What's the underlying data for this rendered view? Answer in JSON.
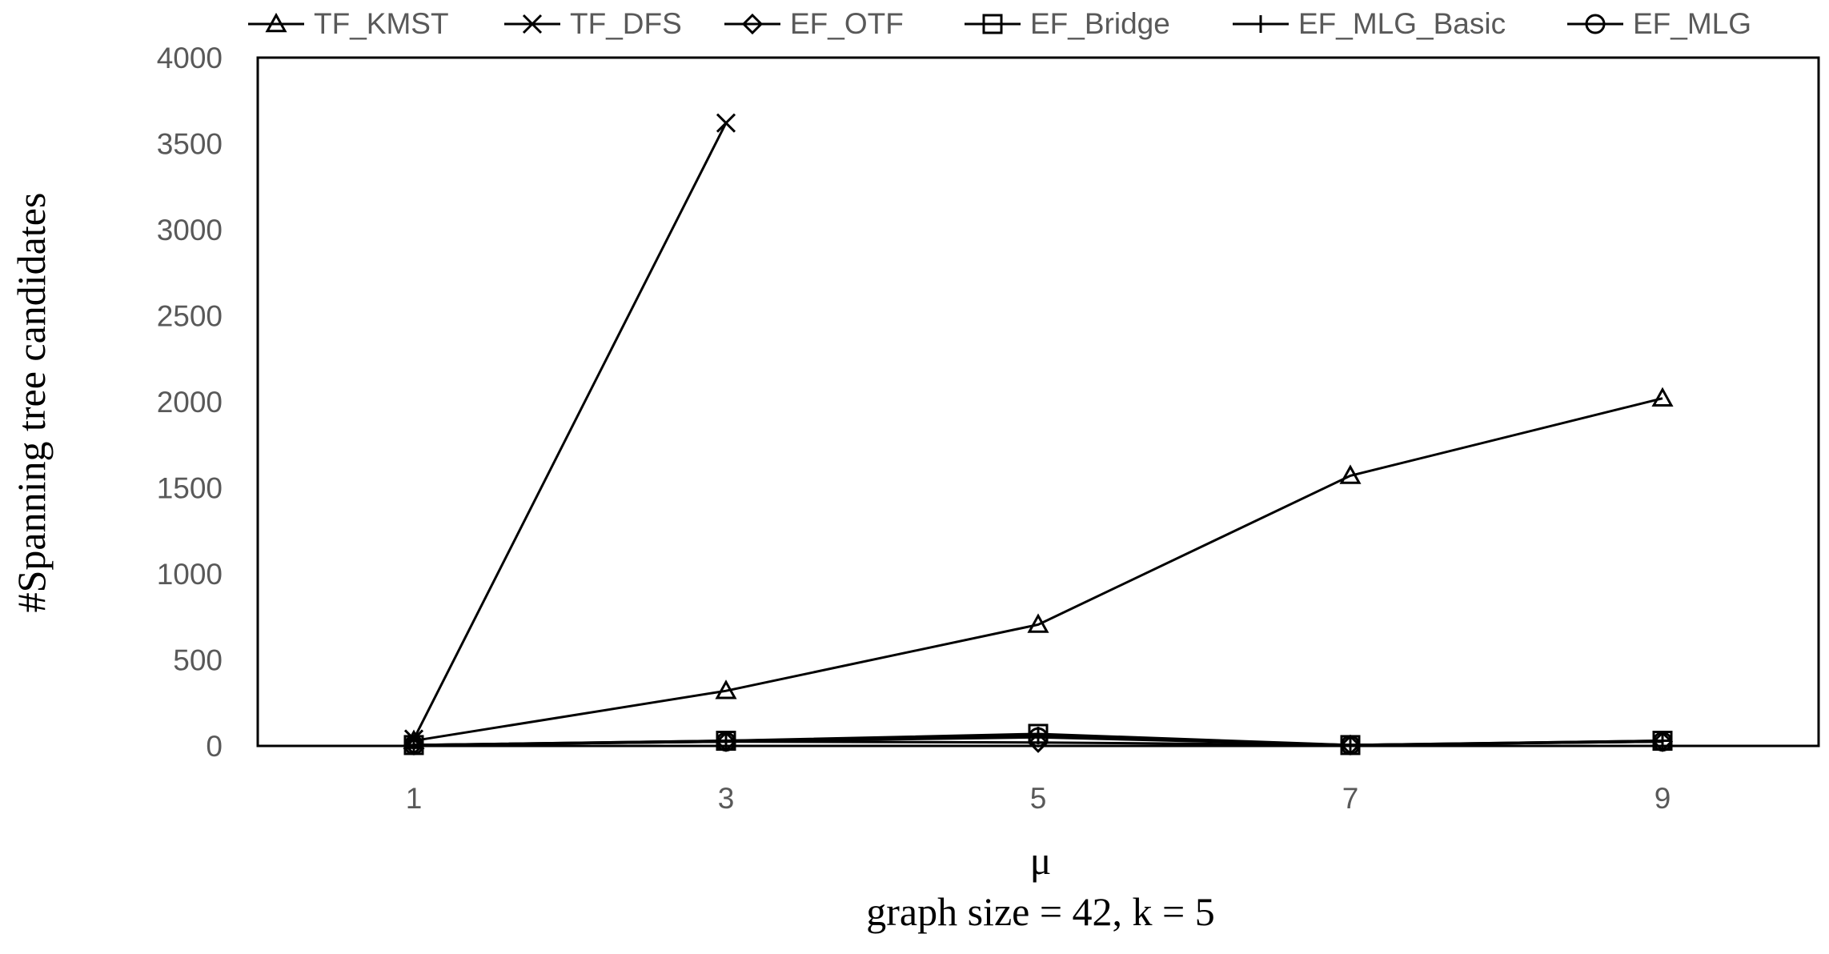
{
  "chart_data": {
    "type": "line",
    "categories": [
      "1",
      "3",
      "5",
      "7",
      "9"
    ],
    "x": [
      1,
      3,
      5,
      7,
      9
    ],
    "xlabel": "μ",
    "subtitle": "graph size = 42, k = 5",
    "ylabel": "#Spanning tree candidates",
    "ylim": [
      0,
      4000
    ],
    "yticks": [
      "0",
      "500",
      "1000",
      "1500",
      "2000",
      "2500",
      "3000",
      "3500",
      "4000"
    ],
    "grid": false,
    "legend_position": "top",
    "series": [
      {
        "name": "TF_KMST",
        "marker": "triangle",
        "values": [
          30,
          320,
          705,
          1570,
          2020
        ]
      },
      {
        "name": "TF_DFS",
        "marker": "x",
        "values": [
          40,
          3620,
          null,
          null,
          null
        ]
      },
      {
        "name": "EF_OTF",
        "marker": "diamond",
        "values": [
          5,
          25,
          20,
          5,
          25
        ]
      },
      {
        "name": "EF_Bridge",
        "marker": "square",
        "values": [
          5,
          30,
          70,
          5,
          30
        ]
      },
      {
        "name": "EF_MLG_Basic",
        "marker": "plus",
        "values": [
          5,
          30,
          60,
          5,
          30
        ]
      },
      {
        "name": "EF_MLG",
        "marker": "circle",
        "values": [
          5,
          25,
          50,
          5,
          25
        ]
      }
    ]
  }
}
